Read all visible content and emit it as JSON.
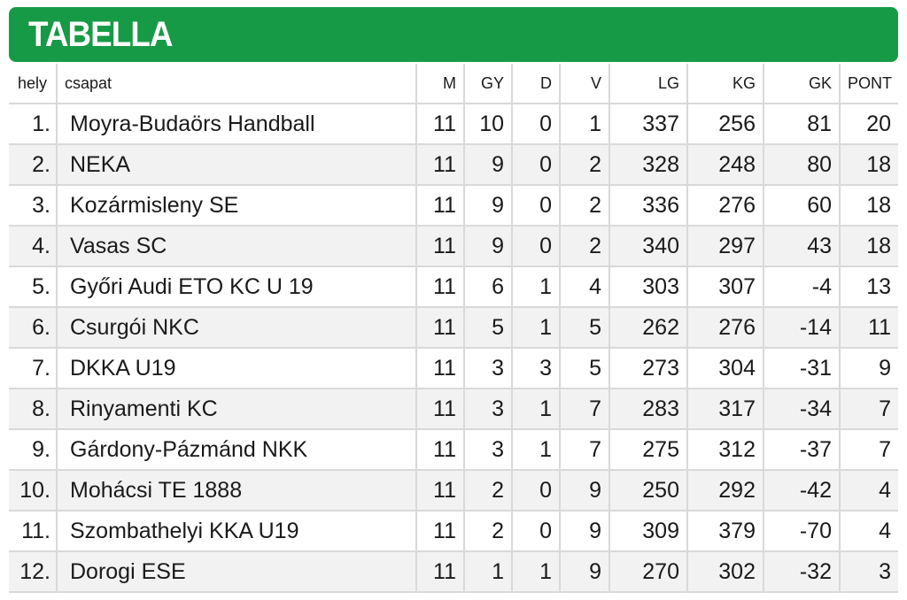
{
  "title": "TABELLA",
  "columns": {
    "pos": "hely",
    "team": "csapat",
    "m": "M",
    "gy": "GY",
    "d": "D",
    "v": "V",
    "lg": "LG",
    "kg": "KG",
    "gk": "GK",
    "pont": "PONT"
  },
  "rows": [
    {
      "pos": "1.",
      "team": "Moyra-Budaörs Handball",
      "m": "11",
      "gy": "10",
      "d": "0",
      "v": "1",
      "lg": "337",
      "kg": "256",
      "gk": "81",
      "pont": "20"
    },
    {
      "pos": "2.",
      "team": "NEKA",
      "m": "11",
      "gy": "9",
      "d": "0",
      "v": "2",
      "lg": "328",
      "kg": "248",
      "gk": "80",
      "pont": "18"
    },
    {
      "pos": "3.",
      "team": "Kozármisleny SE",
      "m": "11",
      "gy": "9",
      "d": "0",
      "v": "2",
      "lg": "336",
      "kg": "276",
      "gk": "60",
      "pont": "18"
    },
    {
      "pos": "4.",
      "team": "Vasas SC",
      "m": "11",
      "gy": "9",
      "d": "0",
      "v": "2",
      "lg": "340",
      "kg": "297",
      "gk": "43",
      "pont": "18"
    },
    {
      "pos": "5.",
      "team": "Győri Audi ETO KC U 19",
      "m": "11",
      "gy": "6",
      "d": "1",
      "v": "4",
      "lg": "303",
      "kg": "307",
      "gk": "-4",
      "pont": "13"
    },
    {
      "pos": "6.",
      "team": "Csurgói NKC",
      "m": "11",
      "gy": "5",
      "d": "1",
      "v": "5",
      "lg": "262",
      "kg": "276",
      "gk": "-14",
      "pont": "11"
    },
    {
      "pos": "7.",
      "team": "DKKA U19",
      "m": "11",
      "gy": "3",
      "d": "3",
      "v": "5",
      "lg": "273",
      "kg": "304",
      "gk": "-31",
      "pont": "9"
    },
    {
      "pos": "8.",
      "team": "Rinyamenti KC",
      "m": "11",
      "gy": "3",
      "d": "1",
      "v": "7",
      "lg": "283",
      "kg": "317",
      "gk": "-34",
      "pont": "7"
    },
    {
      "pos": "9.",
      "team": "Gárdony-Pázmánd NKK",
      "m": "11",
      "gy": "3",
      "d": "1",
      "v": "7",
      "lg": "275",
      "kg": "312",
      "gk": "-37",
      "pont": "7"
    },
    {
      "pos": "10.",
      "team": "Mohácsi TE 1888",
      "m": "11",
      "gy": "2",
      "d": "0",
      "v": "9",
      "lg": "250",
      "kg": "292",
      "gk": "-42",
      "pont": "4"
    },
    {
      "pos": "11.",
      "team": "Szombathelyi KKA U19",
      "m": "11",
      "gy": "2",
      "d": "0",
      "v": "9",
      "lg": "309",
      "kg": "379",
      "gk": "-70",
      "pont": "4"
    },
    {
      "pos": "12.",
      "team": "Dorogi ESE",
      "m": "11",
      "gy": "1",
      "d": "1",
      "v": "9",
      "lg": "270",
      "kg": "302",
      "gk": "-32",
      "pont": "3"
    }
  ]
}
